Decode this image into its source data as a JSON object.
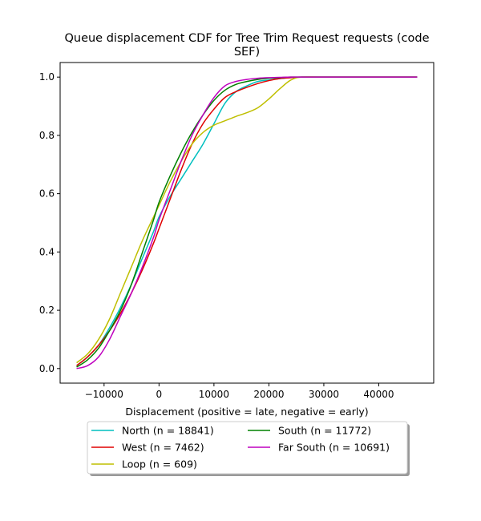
{
  "chart_data": {
    "type": "line",
    "title": "Queue displacement CDF for Tree Trim Request  requests (code SEF)",
    "title_lines": [
      "Queue displacement CDF for Tree Trim Request  requests (code",
      "SEF)"
    ],
    "xlabel": "Displacement (positive = late, negative = early)",
    "ylabel": "",
    "xlim": [
      -18000,
      50000
    ],
    "ylim": [
      -0.05,
      1.05
    ],
    "xticks": [
      -10000,
      0,
      10000,
      20000,
      30000,
      40000
    ],
    "xtick_labels": [
      "−10000",
      "0",
      "10000",
      "20000",
      "30000",
      "40000"
    ],
    "yticks": [
      0.0,
      0.2,
      0.4,
      0.6,
      0.8,
      1.0
    ],
    "ytick_labels": [
      "0.0",
      "0.2",
      "0.4",
      "0.6",
      "0.8",
      "1.0"
    ],
    "grid": false,
    "legend_position": "below-center",
    "legend_columns": 2,
    "series": [
      {
        "name": "North (n = 18841)",
        "color": "#00bfbf",
        "x": [
          -15000,
          -13000,
          -11000,
          -9000,
          -7000,
          -5000,
          -3000,
          -1000,
          0,
          2000,
          4000,
          6000,
          8000,
          10000,
          12000,
          14000,
          16000,
          18000,
          20000,
          22000,
          24000,
          26000,
          30000,
          40000,
          47000
        ],
        "y": [
          0.01,
          0.04,
          0.08,
          0.14,
          0.21,
          0.29,
          0.38,
          0.47,
          0.52,
          0.59,
          0.65,
          0.71,
          0.77,
          0.84,
          0.91,
          0.95,
          0.97,
          0.985,
          0.99,
          0.995,
          0.998,
          1.0,
          1.0,
          1.0,
          1.0
        ]
      },
      {
        "name": "West (n = 7462)",
        "color": "#e00000",
        "x": [
          -15000,
          -13000,
          -11000,
          -9000,
          -7000,
          -5000,
          -3000,
          -1000,
          0,
          2000,
          4000,
          6000,
          8000,
          10000,
          12000,
          14000,
          16000,
          18000,
          20000,
          22000,
          24000,
          26000,
          30000,
          40000,
          47000
        ],
        "y": [
          0.01,
          0.04,
          0.08,
          0.13,
          0.19,
          0.26,
          0.34,
          0.43,
          0.48,
          0.58,
          0.68,
          0.77,
          0.84,
          0.89,
          0.93,
          0.95,
          0.965,
          0.978,
          0.988,
          0.995,
          0.998,
          1.0,
          1.0,
          1.0,
          1.0
        ]
      },
      {
        "name": "Loop (n = 609)",
        "color": "#bfbf00",
        "x": [
          -15000,
          -13000,
          -11000,
          -9000,
          -7000,
          -5000,
          -3000,
          -1000,
          0,
          2000,
          4000,
          6000,
          8000,
          10000,
          12000,
          14000,
          16000,
          18000,
          20000,
          22000,
          24000,
          26000,
          30000,
          40000,
          47000
        ],
        "y": [
          0.02,
          0.05,
          0.1,
          0.17,
          0.26,
          0.35,
          0.44,
          0.52,
          0.56,
          0.64,
          0.71,
          0.77,
          0.81,
          0.835,
          0.85,
          0.865,
          0.878,
          0.895,
          0.925,
          0.96,
          0.99,
          1.0,
          1.0,
          1.0,
          1.0
        ]
      },
      {
        "name": "South (n = 11772)",
        "color": "#008000",
        "x": [
          -15000,
          -13000,
          -11000,
          -9000,
          -7000,
          -5000,
          -3000,
          -1000,
          0,
          2000,
          4000,
          6000,
          8000,
          10000,
          12000,
          14000,
          16000,
          18000,
          20000,
          22000,
          24000,
          26000,
          30000,
          40000,
          47000
        ],
        "y": [
          0.005,
          0.03,
          0.07,
          0.13,
          0.2,
          0.29,
          0.4,
          0.51,
          0.57,
          0.66,
          0.74,
          0.81,
          0.87,
          0.92,
          0.955,
          0.975,
          0.985,
          0.992,
          0.996,
          0.998,
          1.0,
          1.0,
          1.0,
          1.0,
          1.0
        ]
      },
      {
        "name": "Far South (n = 10691)",
        "color": "#bf00bf",
        "x": [
          -15000,
          -13000,
          -11000,
          -9000,
          -7000,
          -5000,
          -3000,
          -1000,
          0,
          2000,
          4000,
          6000,
          8000,
          10000,
          12000,
          14000,
          16000,
          18000,
          20000,
          22000,
          24000,
          26000,
          30000,
          40000,
          47000
        ],
        "y": [
          0.0,
          0.01,
          0.04,
          0.1,
          0.18,
          0.26,
          0.35,
          0.45,
          0.51,
          0.61,
          0.71,
          0.8,
          0.87,
          0.93,
          0.97,
          0.985,
          0.992,
          0.996,
          0.998,
          0.999,
          1.0,
          1.0,
          1.0,
          1.0,
          1.0
        ]
      }
    ]
  }
}
